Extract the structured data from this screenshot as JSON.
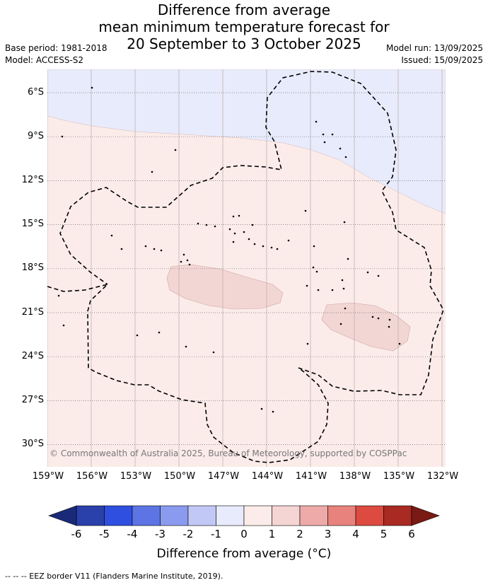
{
  "title": {
    "line1": "Difference from average",
    "line2": "mean minimum temperature forecast for",
    "line3": "20 September to 3 October 2025"
  },
  "meta_left": {
    "base_period": "Base period: 1981-2018",
    "model": "Model: ACCESS-S2"
  },
  "meta_right": {
    "model_run": "Model run: 13/09/2025",
    "issued": "Issued: 15/09/2025"
  },
  "map": {
    "latitude_labels": [
      "6°S",
      "9°S",
      "12°S",
      "15°S",
      "18°S",
      "21°S",
      "24°S",
      "27°S",
      "30°S"
    ],
    "longitude_labels": [
      "159°W",
      "156°W",
      "153°W",
      "150°W",
      "147°W",
      "144°W",
      "141°W",
      "138°W",
      "135°W",
      "132°W"
    ],
    "colors": {
      "cool_band": "#e8ebfb",
      "warm_band": "#fbecea",
      "warm_patch": "#f2d6d4",
      "eez_border": "#000000"
    },
    "copyright": "© Commonwealth of Australia 2025, Bureau of Meteorology, supported by COSPPac"
  },
  "colorbar": {
    "ticks": [
      "-6",
      "-5",
      "-4",
      "-3",
      "-2",
      "-1",
      "0",
      "1",
      "2",
      "3",
      "4",
      "5",
      "6"
    ],
    "colors": [
      "#2a40ab",
      "#2f4fe0",
      "#5c74e4",
      "#8a9aee",
      "#c2c8f6",
      "#e8ebfb",
      "#fbecea",
      "#f4d5d4",
      "#eeaaa8",
      "#e8827c",
      "#dc4a40",
      "#a82a22"
    ],
    "under_color": "#1a2a78",
    "over_color": "#7a1a14",
    "title": "Difference from average (°C)"
  },
  "footnote": "-- -- -- EEZ border V11 (Flanders Marine Institute, 2019)."
}
